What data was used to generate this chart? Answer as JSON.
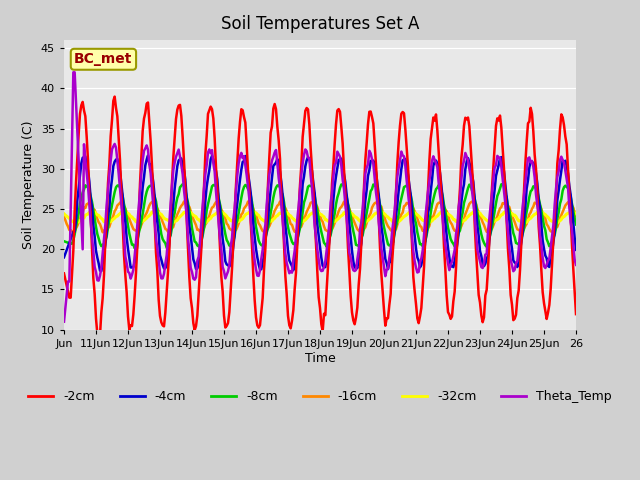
{
  "title": "Soil Temperatures Set A",
  "xlabel": "Time",
  "ylabel": "Soil Temperature (C)",
  "ylim": [
    10,
    46
  ],
  "yticks": [
    10,
    15,
    20,
    25,
    30,
    35,
    40,
    45
  ],
  "annotation": "BC_met",
  "bg_outer": "#d0d0d0",
  "bg_inner": "#e8e8e8",
  "grid_color": "#ffffff",
  "series_colors": {
    "-2cm": "#ff0000",
    "-4cm": "#0000cc",
    "-8cm": "#00cc00",
    "-16cm": "#ff8800",
    "-32cm": "#ffff00",
    "Theta_Temp": "#aa00cc"
  },
  "series_lw": {
    "-2cm": 1.8,
    "-4cm": 1.8,
    "-8cm": 1.8,
    "-16cm": 1.8,
    "-32cm": 2.2,
    "Theta_Temp": 1.8
  },
  "legend_labels": [
    "-2cm",
    "-4cm",
    "-8cm",
    "-16cm",
    "-32cm",
    "Theta_Temp"
  ],
  "xtick_labels": [
    "Jun",
    "11Jun",
    "12Jun",
    "13Jun",
    "14Jun",
    "15Jun",
    "16Jun",
    "17Jun",
    "18Jun",
    "19Jun",
    "20Jun",
    "21Jun",
    "22Jun",
    "23Jun",
    "24Jun",
    "25Jun",
    "26"
  ],
  "n_days": 16,
  "pts_per_day": 24
}
